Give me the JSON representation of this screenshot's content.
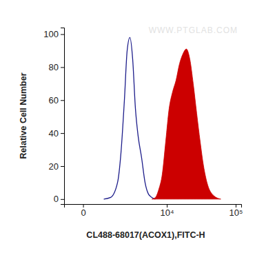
{
  "chart_data": {
    "type": "area",
    "x_label": "CL488-68017(ACOX1),FITC-H",
    "y_label": "Relative Cell Number",
    "annotations": [
      "WWW.PTGLAB.COM"
    ],
    "log": "x",
    "xlim": [
      -600,
      120000
    ],
    "xticks": [
      0,
      {
        "value": 10000,
        "label": "10⁴"
      },
      {
        "value": 100000,
        "label": "10⁵"
      }
    ],
    "ylim": [
      -3,
      104
    ],
    "yticks": [
      0,
      20,
      40,
      60,
      80,
      100
    ],
    "grid": false,
    "series": [
      {
        "type": "line",
        "color": "#1c1c8a",
        "x": [
          672,
          1016,
          1448,
          1702,
          1987,
          2239,
          2516,
          2816,
          3147,
          3509,
          4008,
          4567,
          5190,
          5888,
          6670
        ],
        "values": [
          0,
          1,
          10,
          28,
          60,
          90,
          98,
          85,
          55,
          38,
          25,
          10,
          3,
          1,
          0
        ]
      },
      {
        "type": "area",
        "color": "#cc0000",
        "x": [
          5888,
          6670,
          7545,
          8519,
          9620,
          10840,
          12210,
          13740,
          15460,
          17370,
          19520,
          21910,
          24590,
          27610,
          30970,
          34720,
          38920,
          48870,
          61320
        ],
        "values": [
          0,
          1,
          6,
          15,
          35,
          55,
          65,
          72,
          82,
          88,
          91,
          85,
          70,
          52,
          35,
          20,
          10,
          2,
          0
        ]
      }
    ]
  }
}
